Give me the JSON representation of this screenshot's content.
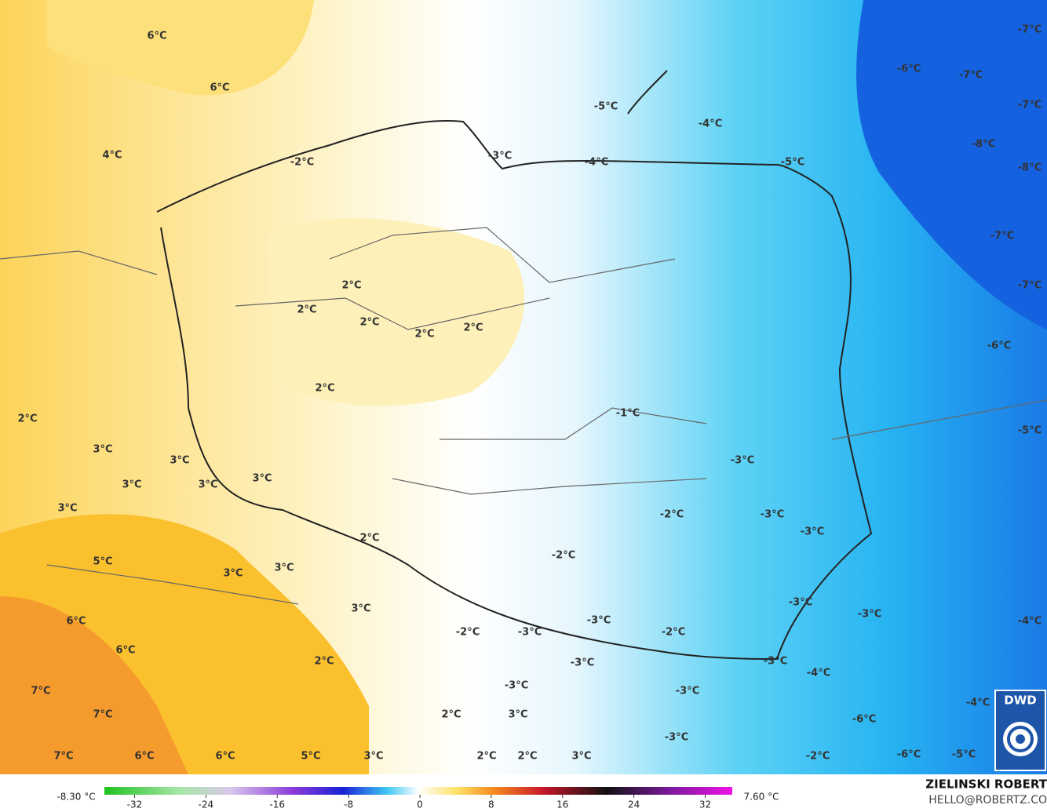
{
  "map": {
    "labels": [
      "6°C",
      "6°C",
      "4°C",
      "-2°C",
      "-3°C",
      "-5°C",
      "-4°C",
      "-4°C",
      "-5°C",
      "-6°C",
      "-7°C",
      "-7°C",
      "-7°C",
      "-8°C",
      "-8°C",
      "-7°C",
      "-7°C",
      "-6°C",
      "-5°C",
      "2°C",
      "2°C",
      "2°C",
      "2°C",
      "2°C",
      "2°C",
      "-1°C",
      "2°C",
      "3°C",
      "3°C",
      "3°C",
      "3°C",
      "3°C",
      "3°C",
      "-3°C",
      "-2°C",
      "-3°C",
      "-3°C",
      "2°C",
      "-2°C",
      "5°C",
      "3°C",
      "3°C",
      "-3°C",
      "-3°C",
      "3°C",
      "-3°C",
      "6°C",
      "-2°C",
      "-3°C",
      "-2°C",
      "-4°C",
      "6°C",
      "2°C",
      "-3°C",
      "-3°C",
      "-4°C",
      "7°C",
      "-3°C",
      "-3°C",
      "-4°C",
      "7°C",
      "2°C",
      "3°C",
      "-6°C",
      "-3°C",
      "7°C",
      "6°C",
      "6°C",
      "5°C",
      "3°C",
      "2°C",
      "2°C",
      "3°C",
      "-2°C",
      "-6°C",
      "-5°C"
    ]
  },
  "colorbar": {
    "min_label": "-8.30 °C",
    "max_label": "7.60 °C",
    "ticks": [
      -32,
      -24,
      -16,
      -8,
      0,
      8,
      16,
      24,
      32
    ]
  },
  "credits": {
    "author": "ZIELINSKI ROBERT",
    "contact": "HELLO@ROBERTZ.CO",
    "logo": "DWD"
  }
}
